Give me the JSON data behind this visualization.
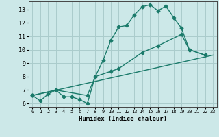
{
  "xlabel": "Humidex (Indice chaleur)",
  "background_color": "#cce8e8",
  "grid_color": "#aacccc",
  "line_color": "#1a7a6a",
  "xlim": [
    -0.5,
    23.5
  ],
  "ylim": [
    5.75,
    13.6
  ],
  "yticks": [
    6,
    7,
    8,
    9,
    10,
    11,
    12,
    13
  ],
  "xticks": [
    0,
    1,
    2,
    3,
    4,
    5,
    6,
    7,
    8,
    9,
    10,
    11,
    12,
    13,
    14,
    15,
    16,
    17,
    18,
    19,
    20,
    21,
    22,
    23
  ],
  "line1_x": [
    0,
    1,
    2,
    3,
    4,
    5,
    6,
    7,
    8,
    9,
    10,
    11,
    12,
    13,
    14,
    15,
    16,
    17,
    18,
    19,
    20,
    22
  ],
  "line1_y": [
    6.6,
    6.2,
    6.7,
    7.0,
    6.5,
    6.5,
    6.3,
    6.0,
    8.0,
    9.2,
    10.7,
    11.7,
    11.8,
    12.6,
    13.2,
    13.35,
    12.9,
    13.25,
    12.4,
    11.6,
    10.0,
    9.6
  ],
  "line2_x": [
    0,
    3,
    7,
    8,
    10,
    11,
    14,
    16,
    19,
    20,
    22
  ],
  "line2_y": [
    6.6,
    7.0,
    6.6,
    8.0,
    8.4,
    8.6,
    9.8,
    10.3,
    11.15,
    10.0,
    9.6
  ],
  "line3_x": [
    0,
    23
  ],
  "line3_y": [
    6.6,
    9.6
  ]
}
